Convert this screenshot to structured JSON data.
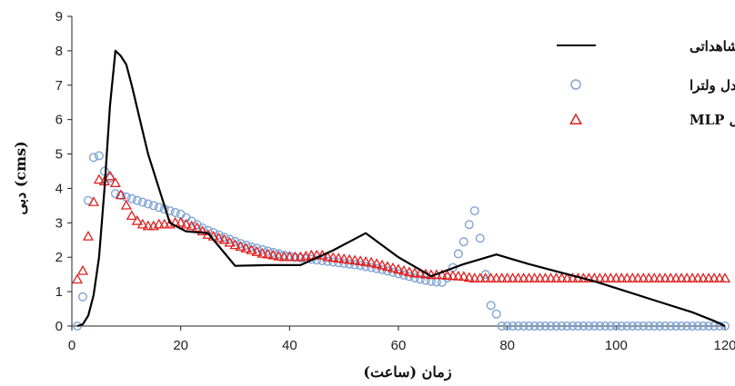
{
  "chart_data": {
    "type": "line",
    "xlabel": "زمان (ساعت)",
    "ylabel": "دبی (cms)",
    "xlim": [
      0,
      120
    ],
    "ylim": [
      0,
      9
    ],
    "xticks": [
      0,
      20,
      40,
      60,
      80,
      100,
      120
    ],
    "yticks": [
      0,
      1,
      2,
      3,
      4,
      5,
      6,
      7,
      8,
      9
    ],
    "grid": false,
    "legend_position": "top-right",
    "series": [
      {
        "name": "مشاهداتی",
        "style": "line",
        "color": "#000000",
        "x": [
          1,
          2,
          3,
          4,
          5,
          6,
          7,
          8,
          9,
          10,
          11,
          14,
          18,
          21,
          25,
          30,
          36,
          42,
          48,
          54,
          60,
          66,
          72,
          78,
          84,
          90,
          96,
          102,
          108,
          114,
          118,
          120
        ],
        "y": [
          0.0,
          0.05,
          0.3,
          0.9,
          2.0,
          4.0,
          6.4,
          8.0,
          7.85,
          7.6,
          7.0,
          5.0,
          3.0,
          2.75,
          2.7,
          1.75,
          1.77,
          1.77,
          2.2,
          2.7,
          2.0,
          1.45,
          1.8,
          2.08,
          1.8,
          1.55,
          1.3,
          1.0,
          0.7,
          0.4,
          0.15,
          0.0
        ]
      },
      {
        "name": "مدل ولترا",
        "style": "circle",
        "color": "#7fa4d6",
        "x": [
          1,
          2,
          3,
          4,
          5,
          6,
          7,
          8,
          9,
          10,
          11,
          12,
          13,
          14,
          15,
          16,
          17,
          18,
          19,
          20,
          21,
          22,
          23,
          24,
          25,
          26,
          27,
          28,
          29,
          30,
          31,
          32,
          33,
          34,
          35,
          36,
          37,
          38,
          39,
          40,
          41,
          42,
          43,
          44,
          45,
          46,
          47,
          48,
          49,
          50,
          51,
          52,
          53,
          54,
          55,
          56,
          57,
          58,
          59,
          60,
          61,
          62,
          63,
          64,
          65,
          66,
          67,
          68,
          69,
          70,
          71,
          72,
          73,
          74,
          75,
          76,
          77,
          78,
          79,
          80,
          81,
          82,
          83,
          84,
          85,
          86,
          87,
          88,
          89,
          90,
          91,
          92,
          93,
          94,
          95,
          96,
          97,
          98,
          99,
          100,
          101,
          102,
          103,
          104,
          105,
          106,
          107,
          108,
          109,
          110,
          111,
          112,
          113,
          114,
          115,
          116,
          117,
          118,
          119,
          120
        ],
        "y": [
          0.0,
          0.85,
          3.65,
          4.9,
          4.95,
          4.5,
          4.3,
          3.85,
          3.8,
          3.75,
          3.7,
          3.65,
          3.6,
          3.55,
          3.5,
          3.45,
          3.4,
          3.35,
          3.3,
          3.25,
          3.15,
          3.05,
          2.95,
          2.85,
          2.78,
          2.72,
          2.65,
          2.58,
          2.52,
          2.46,
          2.4,
          2.35,
          2.3,
          2.26,
          2.22,
          2.18,
          2.14,
          2.1,
          2.06,
          2.03,
          2.0,
          1.98,
          1.96,
          1.94,
          1.92,
          1.9,
          1.88,
          1.86,
          1.84,
          1.82,
          1.8,
          1.78,
          1.76,
          1.73,
          1.7,
          1.67,
          1.64,
          1.6,
          1.56,
          1.52,
          1.48,
          1.44,
          1.4,
          1.36,
          1.33,
          1.3,
          1.28,
          1.27,
          1.4,
          1.7,
          2.1,
          2.45,
          2.95,
          3.35,
          2.55,
          1.5,
          0.6,
          0.35,
          0.0,
          0.0,
          0.0,
          0.0,
          0.0,
          0.0,
          0.0,
          0.0,
          0.0,
          0.0,
          0.0,
          0.0,
          0.0,
          0.0,
          0.0,
          0.0,
          0.0,
          0.0,
          0.0,
          0.0,
          0.0,
          0.0,
          0.0,
          0.0,
          0.0,
          0.0,
          0.0,
          0.0,
          0.0,
          0.0,
          0.0,
          0.0,
          0.0,
          0.0,
          0.0,
          0.0,
          0.0,
          0.0,
          0.0,
          0.0,
          0.0,
          0.0
        ]
      },
      {
        "name": "مدل MLP",
        "style": "triangle",
        "color": "#e02020",
        "x": [
          1,
          2,
          3,
          4,
          5,
          6,
          7,
          8,
          9,
          10,
          11,
          12,
          13,
          14,
          15,
          16,
          17,
          18,
          19,
          20,
          21,
          22,
          23,
          24,
          25,
          26,
          27,
          28,
          29,
          30,
          31,
          32,
          33,
          34,
          35,
          36,
          37,
          38,
          39,
          40,
          41,
          42,
          43,
          44,
          45,
          46,
          47,
          48,
          49,
          50,
          51,
          52,
          53,
          54,
          55,
          56,
          57,
          58,
          59,
          60,
          61,
          62,
          63,
          64,
          65,
          66,
          67,
          68,
          69,
          70,
          71,
          72,
          73,
          74,
          75,
          76,
          77,
          78,
          79,
          80,
          81,
          82,
          83,
          84,
          85,
          86,
          87,
          88,
          89,
          90,
          91,
          92,
          93,
          94,
          95,
          96,
          97,
          98,
          99,
          100,
          101,
          102,
          103,
          104,
          105,
          106,
          107,
          108,
          109,
          110,
          111,
          112,
          113,
          114,
          115,
          116,
          117,
          118,
          119,
          120
        ],
        "y": [
          1.35,
          1.6,
          2.6,
          3.6,
          4.25,
          4.2,
          4.35,
          4.15,
          3.8,
          3.5,
          3.2,
          3.05,
          2.95,
          2.9,
          2.9,
          2.95,
          2.95,
          2.95,
          3.0,
          3.0,
          2.95,
          2.9,
          2.85,
          2.75,
          2.65,
          2.6,
          2.55,
          2.5,
          2.42,
          2.35,
          2.3,
          2.25,
          2.2,
          2.15,
          2.1,
          2.08,
          2.05,
          2.02,
          2.0,
          2.0,
          2.0,
          2.0,
          2.02,
          2.05,
          2.05,
          2.05,
          2.0,
          1.98,
          1.96,
          1.94,
          1.92,
          1.9,
          1.88,
          1.86,
          1.84,
          1.8,
          1.76,
          1.72,
          1.68,
          1.64,
          1.6,
          1.56,
          1.53,
          1.52,
          1.5,
          1.48,
          1.48,
          1.48,
          1.46,
          1.45,
          1.44,
          1.43,
          1.4,
          1.38,
          1.38,
          1.38,
          1.38,
          1.38,
          1.38,
          1.38,
          1.38,
          1.38,
          1.38,
          1.38,
          1.38,
          1.38,
          1.38,
          1.38,
          1.38,
          1.38,
          1.38,
          1.38,
          1.38,
          1.38,
          1.38,
          1.38,
          1.38,
          1.38,
          1.38,
          1.38,
          1.38,
          1.38,
          1.38,
          1.38,
          1.38,
          1.38,
          1.38,
          1.38,
          1.38,
          1.38,
          1.38,
          1.38,
          1.38,
          1.38,
          1.38,
          1.38,
          1.38,
          1.38,
          1.38,
          1.38
        ]
      }
    ]
  }
}
